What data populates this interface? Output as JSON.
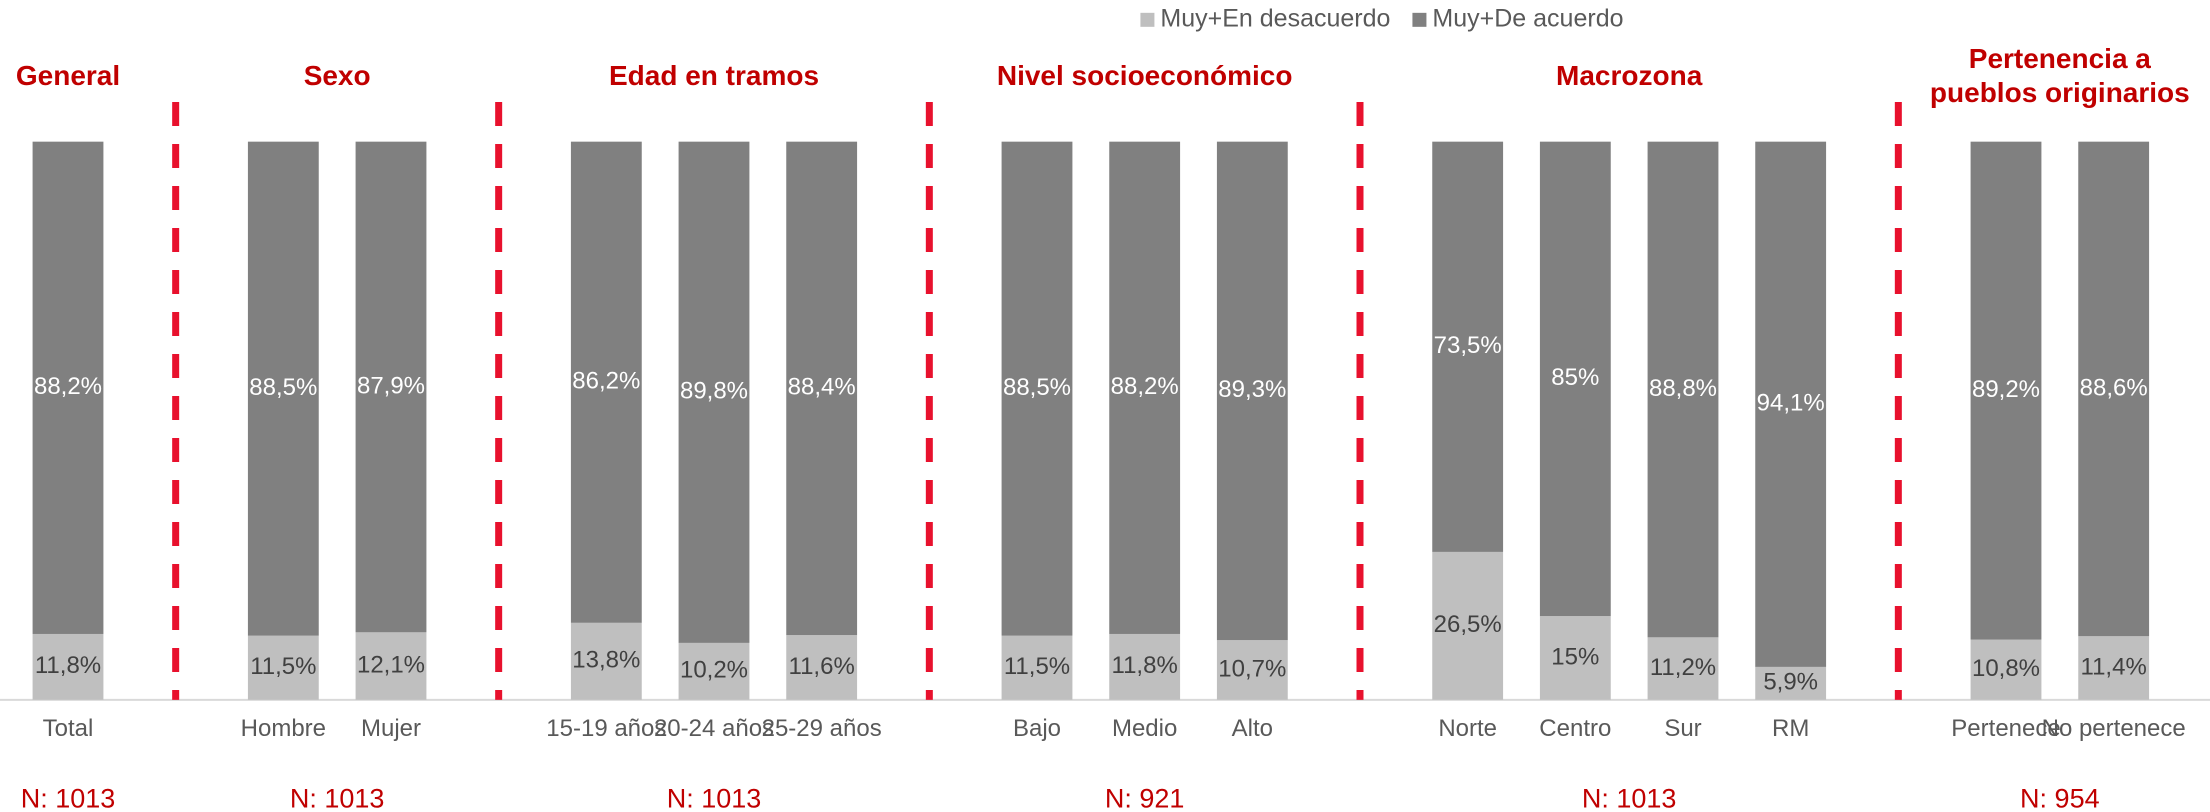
{
  "chart_data": {
    "type": "stacked_bar",
    "groups": [
      {
        "title": "General",
        "n": "N: 1013",
        "categories": [
          "Total"
        ]
      },
      {
        "title": "Sexo",
        "n": "N: 1013",
        "categories": [
          "Hombre",
          "Mujer"
        ]
      },
      {
        "title": "Edad en tramos",
        "n": "N: 1013",
        "categories": [
          "15-19 años",
          "20-24 años",
          "25-29 años"
        ]
      },
      {
        "title": "Nivel socioeconómico",
        "n": "N: 921",
        "categories": [
          "Bajo",
          "Medio",
          "Alto"
        ]
      },
      {
        "title": "Macrozona",
        "n": "N: 1013",
        "categories": [
          "Norte",
          "Centro",
          "Sur",
          "RM"
        ]
      },
      {
        "title": "Pertenencia a\npueblos originarios",
        "n": "N: 954",
        "categories": [
          "Pertenece",
          "No pertenece"
        ]
      }
    ],
    "series": [
      {
        "name": "Muy+En desacuerdo",
        "color": "#bfbfbf",
        "values": [
          11.8,
          11.5,
          12.1,
          13.8,
          10.2,
          11.6,
          11.5,
          11.8,
          10.7,
          26.5,
          15,
          11.2,
          5.9,
          10.8,
          11.4
        ],
        "value_labels": [
          "11,8%",
          "11,5%",
          "12,1%",
          "13,8%",
          "10,2%",
          "11,6%",
          "11,5%",
          "11,8%",
          "10,7%",
          "26,5%",
          "15%",
          "11,2%",
          "5,9%",
          "10,8%",
          "11,4%"
        ]
      },
      {
        "name": "Muy+De acuerdo",
        "color": "#808080",
        "values": [
          88.2,
          88.5,
          87.9,
          86.2,
          89.8,
          88.4,
          88.5,
          88.2,
          89.3,
          73.5,
          85,
          88.8,
          94.1,
          89.2,
          88.6
        ],
        "value_labels": [
          "88,2%",
          "88,5%",
          "87,9%",
          "86,2%",
          "89,8%",
          "88,4%",
          "88,5%",
          "88,2%",
          "89,3%",
          "73,5%",
          "85%",
          "88,8%",
          "94,1%",
          "89,2%",
          "88,6%"
        ]
      }
    ],
    "ylim": [
      0,
      100
    ],
    "legend": "top"
  }
}
